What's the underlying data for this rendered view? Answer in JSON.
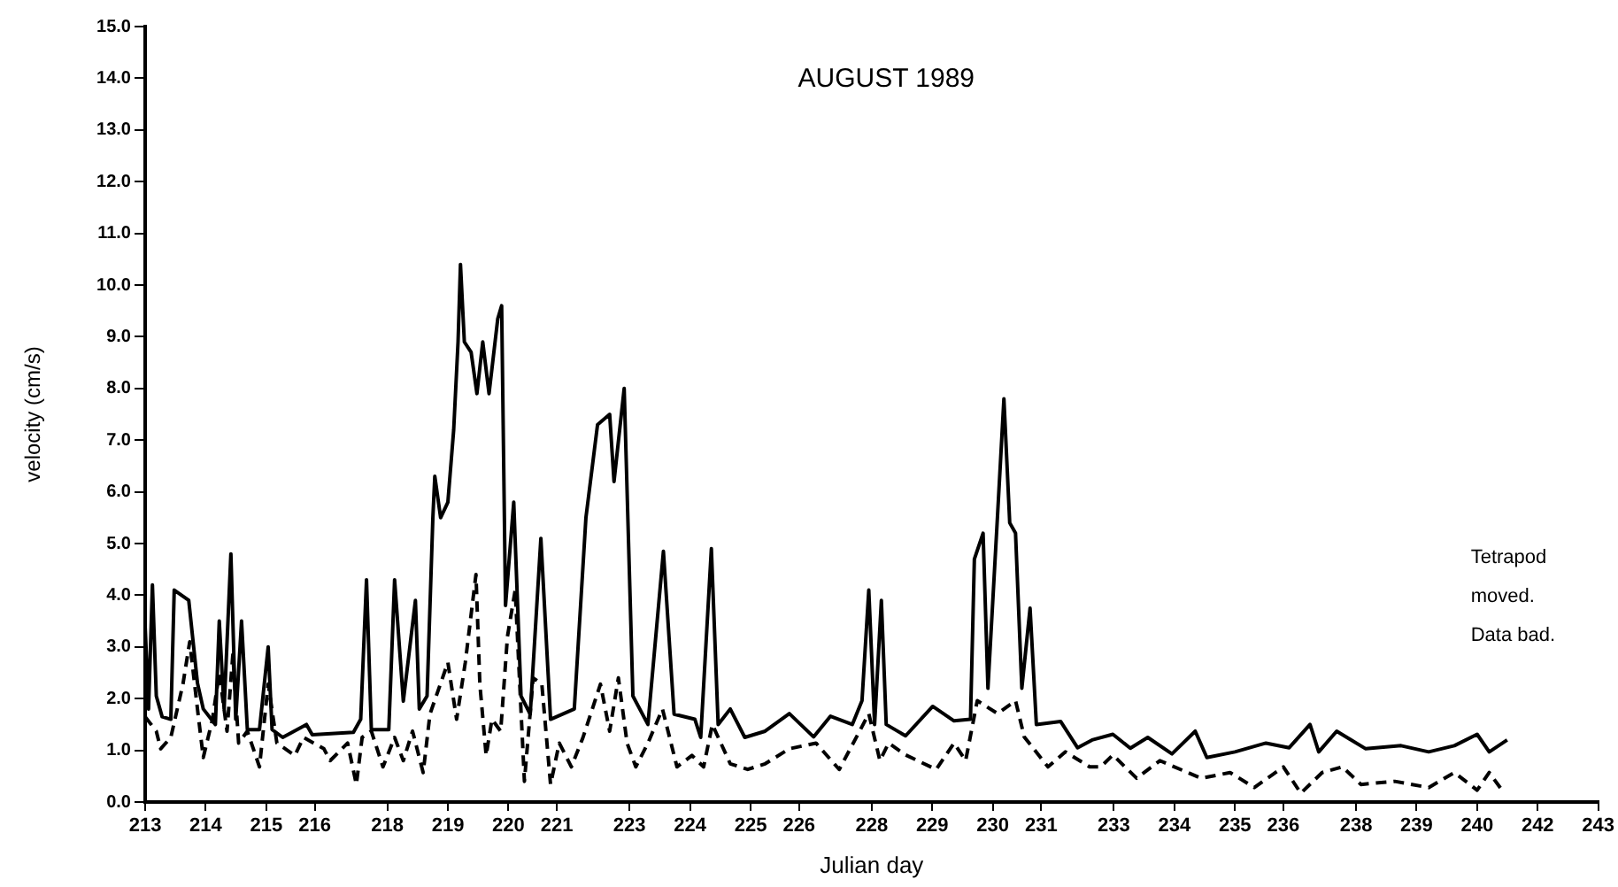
{
  "chart_data": {
    "type": "line",
    "title": "AUGUST 1989",
    "xlabel": "Julian day",
    "ylabel": "velocity (cm/s)",
    "annotations": [
      "Tetrapod",
      "moved.",
      "Data bad."
    ],
    "xlim": [
      213,
      243
    ],
    "xticks": [
      {
        "value": 213,
        "label": "213"
      },
      {
        "value": 214.25,
        "label": "214"
      },
      {
        "value": 215.5,
        "label": "215"
      },
      {
        "value": 216.5,
        "label": "216"
      },
      {
        "value": 218,
        "label": "218"
      },
      {
        "value": 219.25,
        "label": "219"
      },
      {
        "value": 220.5,
        "label": "220"
      },
      {
        "value": 221.5,
        "label": "221"
      },
      {
        "value": 223,
        "label": "223"
      },
      {
        "value": 224.25,
        "label": "224"
      },
      {
        "value": 225.5,
        "label": "225"
      },
      {
        "value": 226.5,
        "label": "226"
      },
      {
        "value": 228,
        "label": "228"
      },
      {
        "value": 229.25,
        "label": "229"
      },
      {
        "value": 230.5,
        "label": "230"
      },
      {
        "value": 231.5,
        "label": "231"
      },
      {
        "value": 233,
        "label": "233"
      },
      {
        "value": 234.25,
        "label": "234"
      },
      {
        "value": 235.5,
        "label": "235"
      },
      {
        "value": 236.5,
        "label": "236"
      },
      {
        "value": 238,
        "label": "238"
      },
      {
        "value": 239.25,
        "label": "239"
      },
      {
        "value": 240.5,
        "label": "240"
      },
      {
        "value": 241.75,
        "label": "242"
      },
      {
        "value": 243,
        "label": "243"
      }
    ],
    "ylim": [
      0,
      15
    ],
    "yticks": [
      {
        "value": 0,
        "label": "0.0"
      },
      {
        "value": 1,
        "label": "1.0"
      },
      {
        "value": 2,
        "label": "2.0"
      },
      {
        "value": 3,
        "label": "3.0"
      },
      {
        "value": 4,
        "label": "4.0"
      },
      {
        "value": 5,
        "label": "5.0"
      },
      {
        "value": 6,
        "label": "6.0"
      },
      {
        "value": 7,
        "label": "7.0"
      },
      {
        "value": 8,
        "label": "8.0"
      },
      {
        "value": 9,
        "label": "9.0"
      },
      {
        "value": 10,
        "label": "10.0"
      },
      {
        "value": 11,
        "label": "11.0"
      },
      {
        "value": 12,
        "label": "12.0"
      },
      {
        "value": 13,
        "label": "13.0"
      },
      {
        "value": 14,
        "label": "14.0"
      },
      {
        "value": 15,
        "label": "15.0"
      }
    ],
    "grid": false,
    "legend": false,
    "marker": "none",
    "series": [
      {
        "color": "#000000",
        "line_style": "solid",
        "x": [
          213.0,
          213.07,
          213.15,
          213.23,
          213.35,
          213.53,
          213.6,
          213.9,
          214.08,
          214.2,
          214.45,
          214.53,
          214.63,
          214.77,
          214.87,
          214.99,
          215.11,
          215.36,
          215.54,
          215.62,
          215.84,
          216.33,
          216.45,
          217.3,
          217.45,
          217.57,
          217.67,
          218.03,
          218.15,
          218.33,
          218.58,
          218.66,
          218.82,
          218.94,
          218.98,
          219.1,
          219.25,
          219.37,
          219.46,
          219.51,
          219.59,
          219.73,
          219.85,
          219.97,
          220.1,
          220.28,
          220.36,
          220.44,
          220.61,
          220.76,
          220.95,
          221.17,
          221.37,
          221.86,
          222.1,
          222.34,
          222.59,
          222.68,
          222.89,
          223.07,
          223.38,
          223.7,
          223.92,
          224.35,
          224.47,
          224.69,
          224.83,
          225.08,
          225.38,
          225.8,
          226.3,
          226.8,
          227.15,
          227.6,
          227.8,
          227.94,
          228.06,
          228.2,
          228.3,
          228.7,
          229.26,
          229.7,
          230.04,
          230.12,
          230.3,
          230.4,
          230.6,
          230.73,
          230.85,
          230.97,
          231.1,
          231.27,
          231.4,
          231.9,
          232.25,
          232.55,
          232.98,
          233.34,
          233.7,
          234.2,
          234.68,
          234.92,
          235.5,
          236.14,
          236.62,
          237.05,
          237.23,
          237.6,
          238.2,
          238.93,
          239.5,
          240.03,
          240.5,
          240.75,
          241.12
        ],
        "values": [
          3.4,
          1.8,
          4.2,
          2.05,
          1.65,
          1.6,
          4.1,
          3.9,
          2.3,
          1.8,
          1.5,
          3.5,
          1.8,
          4.8,
          1.6,
          3.5,
          1.4,
          1.4,
          3.0,
          1.4,
          1.25,
          1.5,
          1.3,
          1.35,
          1.6,
          4.3,
          1.4,
          1.4,
          4.3,
          1.95,
          3.9,
          1.8,
          2.05,
          5.5,
          6.3,
          5.5,
          5.8,
          7.2,
          8.9,
          10.4,
          8.9,
          8.7,
          7.9,
          8.9,
          7.9,
          9.35,
          9.6,
          3.8,
          5.8,
          2.05,
          1.7,
          5.1,
          1.6,
          1.8,
          5.5,
          7.3,
          7.5,
          6.2,
          8.0,
          2.05,
          1.5,
          4.85,
          1.7,
          1.6,
          1.25,
          4.9,
          1.5,
          1.8,
          1.25,
          1.37,
          1.71,
          1.26,
          1.66,
          1.5,
          1.96,
          4.1,
          1.5,
          3.9,
          1.5,
          1.28,
          1.85,
          1.57,
          1.6,
          4.7,
          5.2,
          2.2,
          5.57,
          7.8,
          5.4,
          5.2,
          2.2,
          3.75,
          1.5,
          1.56,
          1.05,
          1.2,
          1.31,
          1.04,
          1.25,
          0.93,
          1.37,
          0.86,
          0.97,
          1.14,
          1.05,
          1.5,
          0.97,
          1.37,
          1.03,
          1.09,
          0.97,
          1.09,
          1.31,
          0.97,
          1.2
        ]
      },
      {
        "color": "#000000",
        "line_style": "dashed",
        "x": [
          213.0,
          213.23,
          213.32,
          213.53,
          213.78,
          213.92,
          214.08,
          214.2,
          214.39,
          214.53,
          214.69,
          214.81,
          214.93,
          215.11,
          215.36,
          215.54,
          215.72,
          216.09,
          216.27,
          216.69,
          216.82,
          217.18,
          217.36,
          217.48,
          217.67,
          217.91,
          218.15,
          218.33,
          218.52,
          218.74,
          218.88,
          219.25,
          219.43,
          219.61,
          219.83,
          219.91,
          220.04,
          220.16,
          220.34,
          220.48,
          220.64,
          220.83,
          221.01,
          221.19,
          221.37,
          221.55,
          221.8,
          222.04,
          222.4,
          222.59,
          222.77,
          222.95,
          223.13,
          223.38,
          223.68,
          223.98,
          224.29,
          224.53,
          224.71,
          225.08,
          225.44,
          225.8,
          226.3,
          226.85,
          227.33,
          227.75,
          227.94,
          228.17,
          228.35,
          228.7,
          229.33,
          229.7,
          229.94,
          230.18,
          230.6,
          230.97,
          231.15,
          231.64,
          232.0,
          232.5,
          232.73,
          232.98,
          233.47,
          233.95,
          234.8,
          235.4,
          235.9,
          236.5,
          236.86,
          237.3,
          237.72,
          238.1,
          238.8,
          239.5,
          240.03,
          240.5,
          240.75,
          241.06
        ],
        "values": [
          1.65,
          1.37,
          1.03,
          1.25,
          2.28,
          3.1,
          1.8,
          0.86,
          1.6,
          2.5,
          1.37,
          2.85,
          1.14,
          1.37,
          0.68,
          2.28,
          1.14,
          0.9,
          1.25,
          1.03,
          0.8,
          1.14,
          0.34,
          1.25,
          1.37,
          0.68,
          1.25,
          0.8,
          1.37,
          0.57,
          1.7,
          2.7,
          1.6,
          2.7,
          4.4,
          2.28,
          0.9,
          1.6,
          1.37,
          3.2,
          4.1,
          0.4,
          2.4,
          2.28,
          0.34,
          1.14,
          0.68,
          1.25,
          2.28,
          1.37,
          2.4,
          1.14,
          0.68,
          1.14,
          1.8,
          0.68,
          0.9,
          0.68,
          1.5,
          0.74,
          0.63,
          0.74,
          1.03,
          1.14,
          0.63,
          1.37,
          1.71,
          0.8,
          1.14,
          0.91,
          0.63,
          1.14,
          0.8,
          1.96,
          1.71,
          1.96,
          1.26,
          0.68,
          0.97,
          0.68,
          0.68,
          0.91,
          0.46,
          0.8,
          0.46,
          0.57,
          0.28,
          0.68,
          0.17,
          0.57,
          0.68,
          0.34,
          0.4,
          0.28,
          0.57,
          0.23,
          0.57,
          0.17
        ]
      }
    ]
  }
}
